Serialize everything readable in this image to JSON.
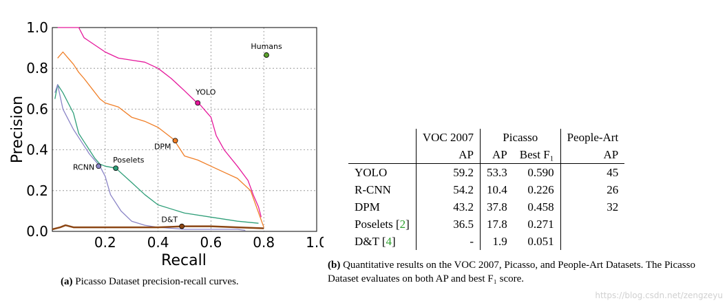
{
  "chart_data": {
    "type": "line",
    "xlabel": "Recall",
    "ylabel": "Precision",
    "xlim": [
      0,
      1.0
    ],
    "ylim": [
      0,
      1.0
    ],
    "xticks": [
      "0.2",
      "0.4",
      "0.6",
      "0.8",
      "1.0"
    ],
    "yticks": [
      "0.0",
      "0.2",
      "0.4",
      "0.6",
      "0.8",
      "1.0"
    ],
    "grid": true,
    "series": [
      {
        "name": "YOLO",
        "color": "#e5179b",
        "x": [
          0.02,
          0.1,
          0.12,
          0.2,
          0.25,
          0.3,
          0.35,
          0.4,
          0.45,
          0.5,
          0.54,
          0.56,
          0.58,
          0.6,
          0.62,
          0.65,
          0.7,
          0.74,
          0.76,
          0.78,
          0.79
        ],
        "y": [
          1.0,
          1.0,
          0.95,
          0.88,
          0.85,
          0.84,
          0.83,
          0.8,
          0.75,
          0.69,
          0.64,
          0.62,
          0.59,
          0.56,
          0.47,
          0.4,
          0.32,
          0.25,
          0.18,
          0.12,
          0.07
        ],
        "marker": {
          "x": 0.55,
          "y": 0.63
        }
      },
      {
        "name": "DPM",
        "color": "#f07e26",
        "x": [
          0.02,
          0.04,
          0.06,
          0.08,
          0.1,
          0.12,
          0.15,
          0.18,
          0.2,
          0.25,
          0.3,
          0.35,
          0.4,
          0.44,
          0.46,
          0.48,
          0.5,
          0.55,
          0.6,
          0.65,
          0.7,
          0.75,
          0.8
        ],
        "y": [
          0.85,
          0.88,
          0.85,
          0.82,
          0.78,
          0.75,
          0.7,
          0.65,
          0.63,
          0.61,
          0.56,
          0.54,
          0.51,
          0.47,
          0.45,
          0.41,
          0.37,
          0.35,
          0.32,
          0.29,
          0.26,
          0.2,
          0.02
        ],
        "marker": {
          "x": 0.465,
          "y": 0.445
        }
      },
      {
        "name": "Poselets",
        "color": "#2e9e78",
        "x": [
          0.01,
          0.02,
          0.04,
          0.06,
          0.08,
          0.1,
          0.12,
          0.14,
          0.16,
          0.18,
          0.2,
          0.24,
          0.3,
          0.35,
          0.4,
          0.5,
          0.6,
          0.7,
          0.78
        ],
        "y": [
          0.65,
          0.72,
          0.68,
          0.63,
          0.58,
          0.48,
          0.44,
          0.4,
          0.36,
          0.33,
          0.32,
          0.31,
          0.24,
          0.18,
          0.13,
          0.09,
          0.07,
          0.05,
          0.04
        ],
        "marker": {
          "x": 0.24,
          "y": 0.31
        }
      },
      {
        "name": "RCNN",
        "color": "#8a84c6",
        "x": [
          0.01,
          0.02,
          0.04,
          0.06,
          0.08,
          0.1,
          0.12,
          0.14,
          0.16,
          0.18,
          0.2,
          0.22,
          0.26,
          0.3,
          0.35,
          0.4,
          0.5,
          0.6,
          0.7,
          0.73
        ],
        "y": [
          0.68,
          0.72,
          0.6,
          0.55,
          0.5,
          0.46,
          0.42,
          0.38,
          0.35,
          0.32,
          0.27,
          0.18,
          0.1,
          0.05,
          0.03,
          0.02,
          0.01,
          0.01,
          0.01,
          0.005
        ],
        "marker": {
          "x": 0.175,
          "y": 0.32
        }
      },
      {
        "name": "D&T",
        "color": "#8b4513",
        "x": [
          0.0,
          0.03,
          0.05,
          0.08,
          0.12,
          0.2,
          0.3,
          0.4,
          0.5,
          0.6,
          0.7,
          0.8
        ],
        "y": [
          0.01,
          0.02,
          0.03,
          0.02,
          0.02,
          0.02,
          0.02,
          0.02,
          0.025,
          0.025,
          0.02,
          0.015
        ],
        "marker": {
          "x": 0.49,
          "y": 0.025
        }
      }
    ],
    "points": [
      {
        "name": "Humans",
        "x": 0.81,
        "y": 0.865,
        "color": "#5aa02c"
      }
    ]
  },
  "caption_a": {
    "label": "(a)",
    "text": "Picasso Dataset precision-recall curves."
  },
  "caption_b": {
    "label": "(b)",
    "text": "Quantitative results on the VOC 2007, Picasso, and People-Art Datasets. The Picasso Dataset evaluates on both AP and best F₁ score."
  },
  "table": {
    "group_headers": [
      "VOC 2007",
      "Picasso",
      "People-Art"
    ],
    "sub_headers": [
      "AP",
      "AP",
      "Best F₁",
      "AP"
    ],
    "rows": [
      {
        "name": "YOLO",
        "ref": "",
        "voc": "59.2",
        "pic_ap": "53.3",
        "pic_f1": "0.590",
        "pa_ap": "45"
      },
      {
        "name": "R-CNN",
        "ref": "",
        "voc": "54.2",
        "pic_ap": "10.4",
        "pic_f1": "0.226",
        "pa_ap": "26"
      },
      {
        "name": "DPM",
        "ref": "",
        "voc": "43.2",
        "pic_ap": "37.8",
        "pic_f1": "0.458",
        "pa_ap": "32"
      },
      {
        "name": "Poselets",
        "ref": "2",
        "voc": "36.5",
        "pic_ap": "17.8",
        "pic_f1": "0.271",
        "pa_ap": ""
      },
      {
        "name": "D&T",
        "ref": "4",
        "voc": "-",
        "pic_ap": "1.9",
        "pic_f1": "0.051",
        "pa_ap": ""
      }
    ]
  },
  "watermark": "https://blog.csdn.net/zengzeyu"
}
